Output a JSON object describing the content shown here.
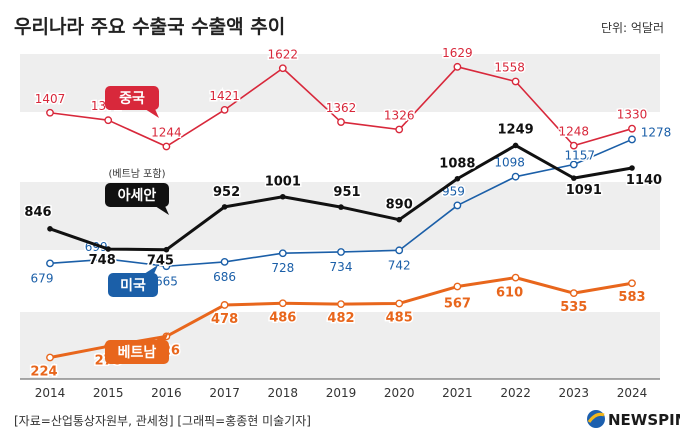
{
  "header": {
    "title": "우리나라 주요 수출국 수출액 추이",
    "unit": "단위: 억달러"
  },
  "footer": {
    "source": "[자료=산업통상자원부, 관세청] [그래픽=홍종현 미술기자]",
    "logo": "NEWSPIM"
  },
  "chart_data": {
    "type": "line",
    "x": [
      "2014",
      "2015",
      "2016",
      "2017",
      "2018",
      "2019",
      "2020",
      "2021",
      "2022",
      "2023",
      "2024"
    ],
    "ylim": [
      120,
      1720
    ],
    "grid": "alternating horizontal bands",
    "series": [
      {
        "name": "중국",
        "color": "#d8283b",
        "values": [
          1407,
          1371,
          1244,
          1421,
          1622,
          1362,
          1326,
          1629,
          1558,
          1248,
          1330
        ]
      },
      {
        "name": "아세안",
        "note": "(베트남 포함)",
        "color": "#111111",
        "values": [
          846,
          748,
          745,
          952,
          1001,
          951,
          890,
          1088,
          1249,
          1091,
          1140
        ]
      },
      {
        "name": "미국",
        "color": "#1b5fa8",
        "values": [
          679,
          699,
          665,
          686,
          728,
          734,
          742,
          959,
          1098,
          1157,
          1278
        ]
      },
      {
        "name": "베트남",
        "color": "#e8661c",
        "values": [
          224,
          278,
          326,
          478,
          486,
          482,
          485,
          567,
          610,
          535,
          583
        ]
      }
    ]
  }
}
